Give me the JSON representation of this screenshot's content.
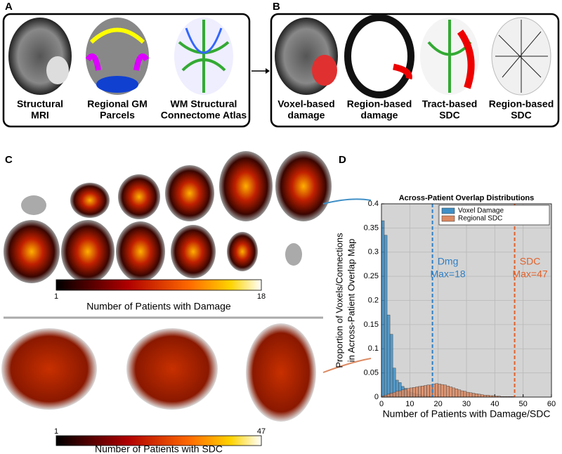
{
  "panel_a": {
    "label": "A",
    "captions": [
      [
        "Structural",
        "MRI"
      ],
      [
        "Regional GM",
        "Parcels"
      ],
      [
        "WM Structural",
        "Connectome Atlas"
      ]
    ]
  },
  "panel_b": {
    "label": "B",
    "captions": [
      [
        "Voxel-based",
        "damage"
      ],
      [
        "Region-based",
        "damage"
      ],
      [
        "Tract-based",
        "SDC"
      ],
      [
        "Region-based",
        "SDC"
      ]
    ]
  },
  "panel_c": {
    "label": "C",
    "colorbars": [
      {
        "min": 1,
        "max": 18,
        "label": "Number of Patients with Damage"
      },
      {
        "min": 1,
        "max": 47,
        "label": "Number of Patients with SDC"
      }
    ]
  },
  "panel_d": {
    "label": "D"
  },
  "chart_data": {
    "type": "histogram",
    "title": "Across-Patient Overlap Distributions",
    "xlabel": "Number of Patients with Damage/SDC",
    "ylabel": [
      "Proportion of Voxels/Connections",
      "in Across-Patient Overlap Map"
    ],
    "xlim": [
      0,
      60
    ],
    "xticks": [
      0,
      10,
      20,
      30,
      40,
      50,
      60
    ],
    "ylim": [
      0,
      0.4
    ],
    "yticks": [
      0,
      0.05,
      0.1,
      0.15,
      0.2,
      0.25,
      0.3,
      0.35,
      0.4
    ],
    "grid": true,
    "background": "#d4d4d4",
    "legend": "top-right",
    "series": [
      {
        "name": "Voxel Damage",
        "color": "#3f8fc6",
        "bins": [
          0,
          1,
          2,
          3,
          4,
          5,
          6,
          7,
          8,
          9,
          10,
          11,
          12,
          13,
          14,
          15,
          16,
          17,
          18
        ],
        "values": [
          0.365,
          0.335,
          0.17,
          0.13,
          0.06,
          0.035,
          0.03,
          0.022,
          0.018,
          0.012,
          0.01,
          0.008,
          0.006,
          0.005,
          0.004,
          0.003,
          0.002,
          0.002
        ]
      },
      {
        "name": "Regional SDC",
        "color": "#dc8a62",
        "bins": [
          0,
          1,
          2,
          3,
          4,
          5,
          6,
          7,
          8,
          9,
          10,
          11,
          12,
          13,
          14,
          15,
          16,
          17,
          18,
          19,
          20,
          21,
          22,
          23,
          24,
          25,
          26,
          27,
          28,
          29,
          30,
          31,
          32,
          33,
          34,
          35,
          36,
          37,
          38,
          39,
          40,
          41,
          42,
          43,
          44,
          45,
          46,
          47
        ],
        "values": [
          0.002,
          0.004,
          0.006,
          0.008,
          0.01,
          0.012,
          0.013,
          0.015,
          0.016,
          0.018,
          0.019,
          0.02,
          0.021,
          0.022,
          0.023,
          0.024,
          0.025,
          0.025,
          0.027,
          0.028,
          0.027,
          0.026,
          0.025,
          0.023,
          0.021,
          0.019,
          0.017,
          0.015,
          0.013,
          0.012,
          0.01,
          0.009,
          0.008,
          0.007,
          0.006,
          0.005,
          0.004,
          0.004,
          0.003,
          0.003,
          0.002,
          0.002,
          0.001,
          0.001,
          0.001,
          0.001,
          0.001
        ]
      }
    ],
    "vlines": [
      {
        "x": 18,
        "color": "#2f7fc4",
        "label": [
          "Dmg",
          "Max=18"
        ]
      },
      {
        "x": 47,
        "color": "#e0622c",
        "label": [
          "SDC",
          "Max=47"
        ]
      }
    ]
  }
}
